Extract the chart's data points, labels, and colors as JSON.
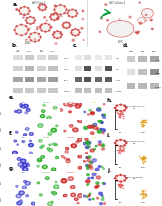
{
  "panel_a_bg": "#c8dff0",
  "wb_bg_b": "#d8d8d8",
  "wb_bg_c": "#d8d8d8",
  "wb_bg_d": "#e0e0e0",
  "wb_band_dark": "#333333",
  "wb_band_mid": "#666666",
  "wb_band_light": "#aaaaaa",
  "fluor_bg": "#0a0a0a",
  "col_blue": "#3333cc",
  "col_green": "#22aa22",
  "col_red": "#cc2222",
  "col_yellow": "#cccc00",
  "col_magenta": "#cc00cc",
  "scatter_pink": "#e06060",
  "scatter_orange": "#e0a020",
  "scatter_red": "#cc2222",
  "white": "#ffffff",
  "black": "#000000",
  "panel_labels_fs": 4.0,
  "small_fs": 1.8,
  "tiny_fs": 1.4
}
